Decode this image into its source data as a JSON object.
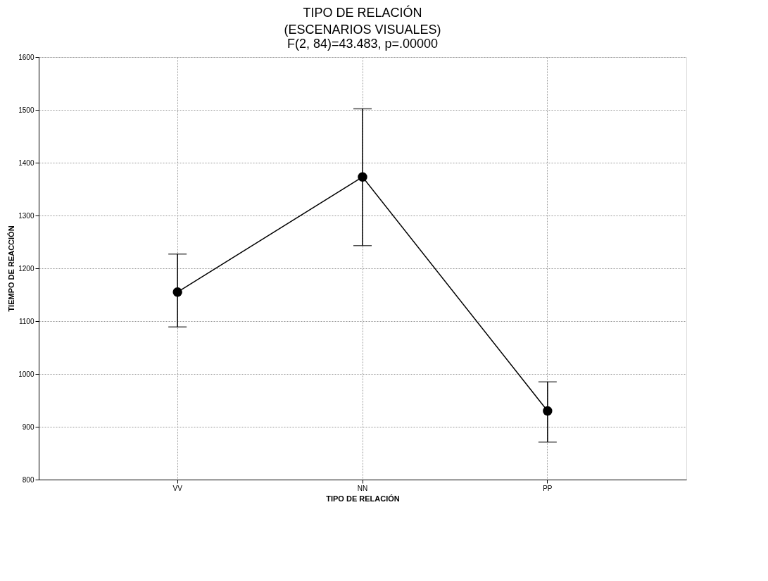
{
  "chart_data": {
    "type": "line",
    "title": "TIPO DE RELACIÓN",
    "subtitle": "(ESCENARIOS VISUALES)",
    "annotations": [
      "F(2, 84)=43.483, p=.00000"
    ],
    "xlabel": "TIPO DE RELACIÓN",
    "ylabel": "TIEMPO DE REACCIÓN",
    "categories": [
      "VV",
      "NN",
      "PP"
    ],
    "series": [
      {
        "color": "#000000",
        "values": [
          1155,
          1373,
          930
        ],
        "errors": [
          [
            1089,
            1227
          ],
          [
            1243,
            1502
          ],
          [
            871,
            985
          ]
        ]
      }
    ],
    "ylim": [
      800,
      1600
    ],
    "yticks": [
      800,
      900,
      1000,
      1100,
      1200,
      1300,
      1400,
      1500,
      1600
    ],
    "grid": true,
    "marker": "circle",
    "line_style": "solid"
  }
}
